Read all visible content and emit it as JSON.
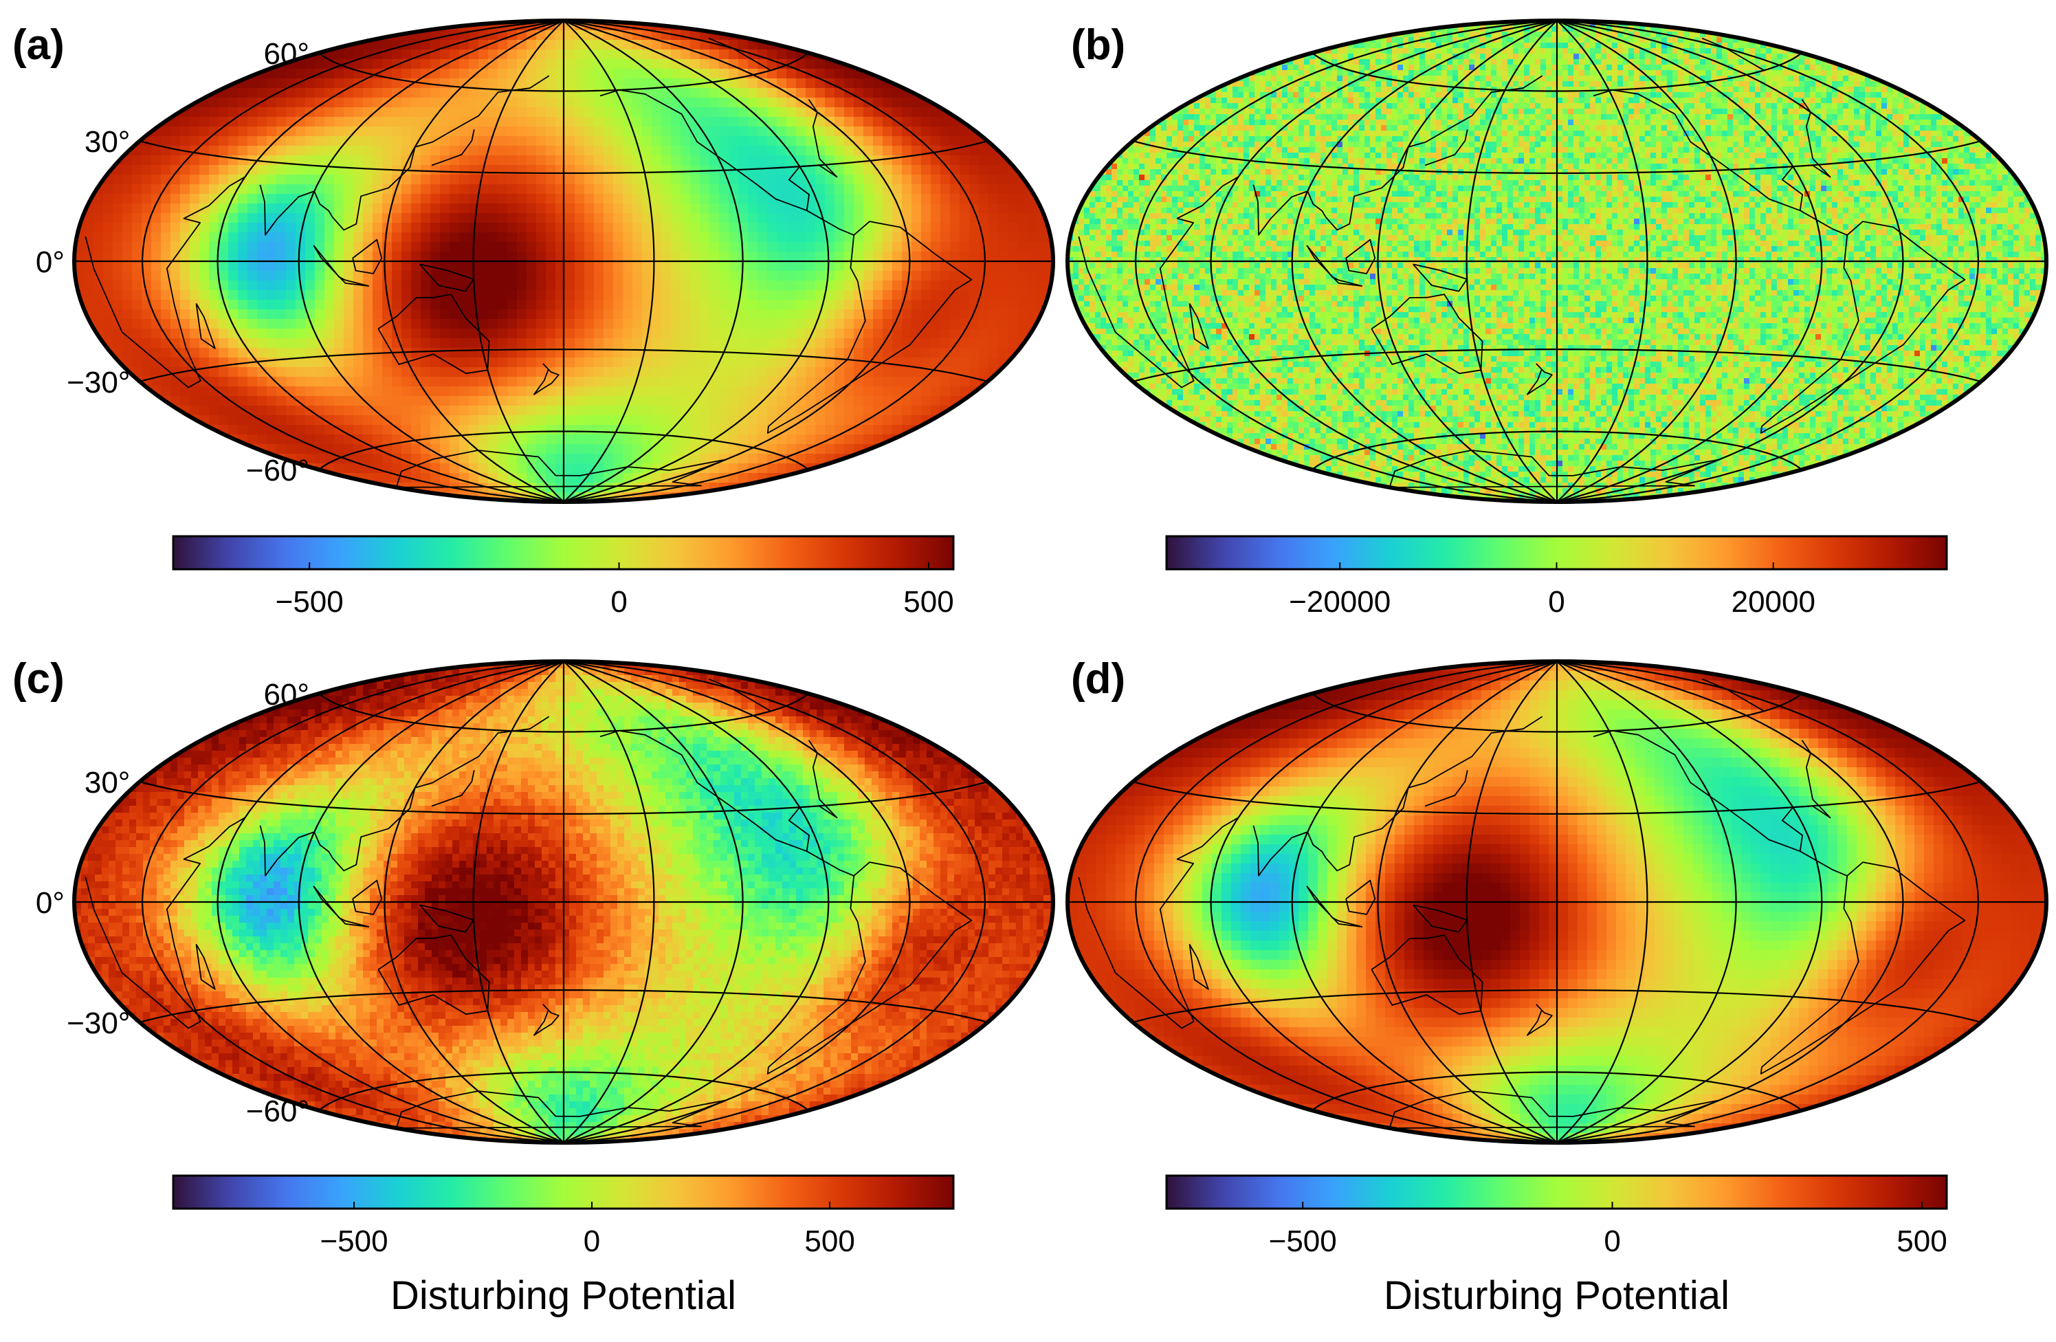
{
  "colors": {
    "colormap": [
      "#30123b",
      "#4145ab",
      "#4675ed",
      "#39a2fc",
      "#1bcfd4",
      "#24eca6",
      "#61fc6c",
      "#a4fc3b",
      "#d1e834",
      "#f3c63a",
      "#fe9b2d",
      "#f36315",
      "#d93806",
      "#b11901",
      "#7a0402"
    ],
    "coastline": "#000000",
    "graticule": "#000000"
  },
  "panels": [
    {
      "id": "a",
      "letter": "(a)",
      "lat_labels": [
        "60°",
        "30°",
        "0°",
        "−30°",
        "−60°"
      ],
      "field": "smooth",
      "colorbar": {
        "min": -720,
        "max": 540,
        "ticks": [
          -500,
          0,
          500
        ],
        "tick_labels": [
          "−500",
          "0",
          "500"
        ],
        "title": ""
      }
    },
    {
      "id": "b",
      "letter": "(b)",
      "lat_labels": [],
      "field": "noise",
      "colorbar": {
        "min": -36000,
        "max": 36000,
        "ticks": [
          -20000,
          0,
          20000
        ],
        "tick_labels": [
          "−20000",
          "0",
          "20000"
        ],
        "title": ""
      }
    },
    {
      "id": "c",
      "letter": "(c)",
      "lat_labels": [
        "60°",
        "30°",
        "0°",
        "−30°",
        "−60°"
      ],
      "field": "smooth_noisy",
      "colorbar": {
        "min": -880,
        "max": 760,
        "ticks": [
          -500,
          0,
          500
        ],
        "tick_labels": [
          "−500",
          "0",
          "500"
        ],
        "title": "Disturbing Potential"
      }
    },
    {
      "id": "d",
      "letter": "(d)",
      "lat_labels": [],
      "field": "smooth",
      "colorbar": {
        "min": -720,
        "max": 540,
        "ticks": [
          -500,
          0,
          500
        ],
        "tick_labels": [
          "−500",
          "0",
          "500"
        ],
        "title": "Disturbing Potential"
      }
    }
  ]
}
